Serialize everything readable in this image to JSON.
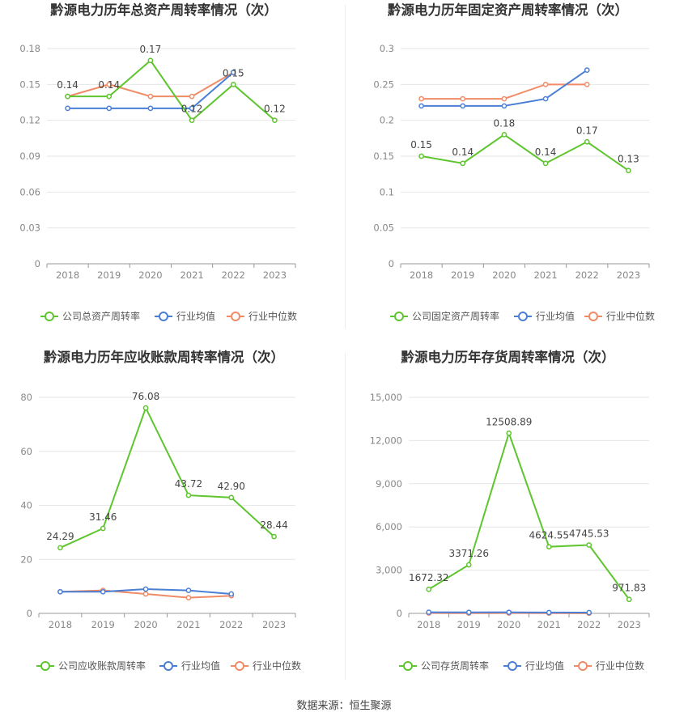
{
  "footer": "数据来源：恒生聚源",
  "colors": {
    "company": "#5ec52e",
    "industry_avg": "#4a7fd6",
    "industry_median": "#f08b66"
  },
  "chart_data": [
    {
      "type": "line",
      "title": "黔源电力历年总资产周转率情况（次）",
      "categories": [
        "2018",
        "2019",
        "2020",
        "2021",
        "2022",
        "2023"
      ],
      "ylim": [
        0,
        0.18
      ],
      "yticks": [
        "0",
        "0.03",
        "0.06",
        "0.09",
        "0.12",
        "0.15",
        "0.18"
      ],
      "series": [
        {
          "name": "公司总资产周转率",
          "values": [
            0.14,
            0.14,
            0.17,
            0.12,
            0.15,
            0.12
          ],
          "labels": [
            "0.14",
            "0.14",
            "0.17",
            "0.12",
            "0.15",
            "0.12"
          ]
        },
        {
          "name": "行业均值",
          "values": [
            0.13,
            0.13,
            0.13,
            0.13,
            0.16,
            null
          ]
        },
        {
          "name": "行业中位数",
          "values": [
            0.14,
            0.15,
            0.14,
            0.14,
            0.16,
            null
          ]
        }
      ]
    },
    {
      "type": "line",
      "title": "黔源电力历年固定资产周转率情况（次）",
      "categories": [
        "2018",
        "2019",
        "2020",
        "2021",
        "2022",
        "2023"
      ],
      "ylim": [
        0,
        0.3
      ],
      "yticks": [
        "0",
        "0.05",
        "0.1",
        "0.15",
        "0.2",
        "0.25",
        "0.3"
      ],
      "series": [
        {
          "name": "公司固定资产周转率",
          "values": [
            0.15,
            0.14,
            0.18,
            0.14,
            0.17,
            0.13
          ],
          "labels": [
            "0.15",
            "0.14",
            "0.18",
            "0.14",
            "0.17",
            "0.13"
          ]
        },
        {
          "name": "行业均值",
          "values": [
            0.22,
            0.22,
            0.22,
            0.23,
            0.27,
            null
          ]
        },
        {
          "name": "行业中位数",
          "values": [
            0.23,
            0.23,
            0.23,
            0.25,
            0.25,
            null
          ]
        }
      ]
    },
    {
      "type": "line",
      "title": "黔源电力历年应收账款周转率情况（次）",
      "categories": [
        "2018",
        "2019",
        "2020",
        "2021",
        "2022",
        "2023"
      ],
      "ylim": [
        0,
        80
      ],
      "yticks": [
        "0",
        "20",
        "40",
        "60",
        "80"
      ],
      "series": [
        {
          "name": "公司应收账款周转率",
          "values": [
            24.29,
            31.46,
            76.08,
            43.72,
            42.9,
            28.44
          ],
          "labels": [
            "24.29",
            "31.46",
            "76.08",
            "43.72",
            "42.90",
            "28.44"
          ]
        },
        {
          "name": "行业均值",
          "values": [
            8.0,
            8.0,
            9.0,
            8.5,
            7.2,
            null
          ]
        },
        {
          "name": "行业中位数",
          "values": [
            8.0,
            8.5,
            7.2,
            5.8,
            6.5,
            null
          ]
        }
      ]
    },
    {
      "type": "line",
      "title": "黔源电力历年存货周转率情况（次）",
      "categories": [
        "2018",
        "2019",
        "2020",
        "2021",
        "2022",
        "2023"
      ],
      "ylim": [
        0,
        15000
      ],
      "yticks": [
        "0",
        "3,000",
        "6,000",
        "9,000",
        "12,000",
        "15,000"
      ],
      "series": [
        {
          "name": "公司存货周转率",
          "values": [
            1672.32,
            3371.26,
            12508.89,
            4624.55,
            4745.53,
            971.83
          ],
          "labels": [
            "1672.32",
            "3371.26",
            "12508.89",
            "4624.55",
            "4745.53",
            "971.83"
          ]
        },
        {
          "name": "行业均值",
          "values": [
            80,
            70,
            75,
            60,
            55,
            null
          ]
        },
        {
          "name": "行业中位数",
          "values": [
            20,
            15,
            18,
            15,
            10,
            null
          ]
        }
      ]
    }
  ]
}
